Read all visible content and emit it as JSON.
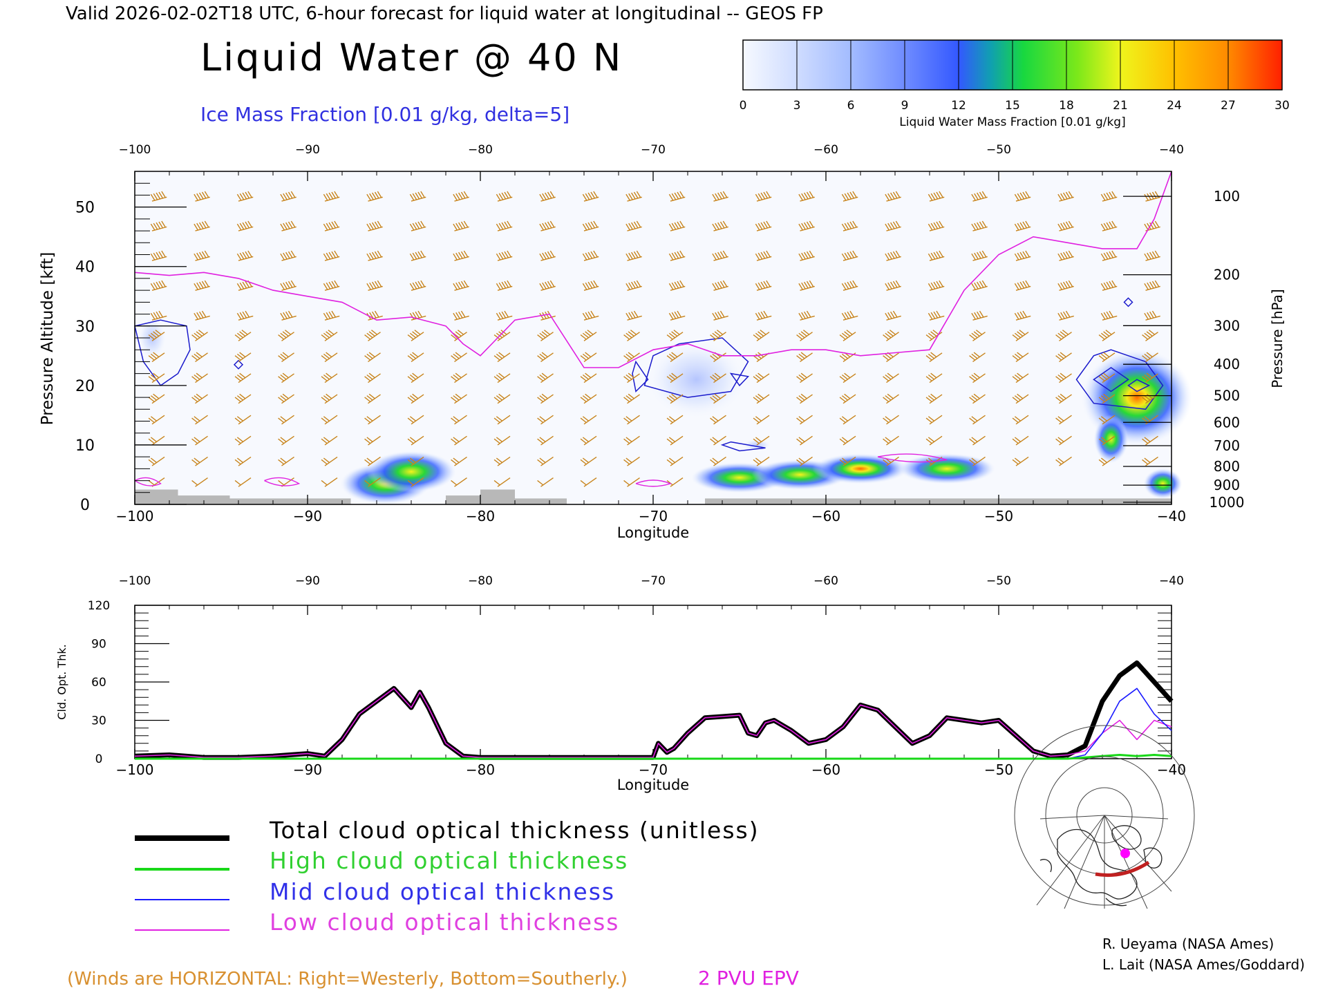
{
  "header": {
    "valid_line": "Valid 2026-02-02T18 UTC, 6-hour forecast for liquid water at longitudinal -- GEOS FP",
    "title": "Liquid Water @ 40 N",
    "ice_label": "Ice Mass Fraction [0.01 g/kg, delta=5]"
  },
  "colorbar": {
    "ticks": [
      "0",
      "3",
      "6",
      "9",
      "12",
      "15",
      "18",
      "21",
      "24",
      "27",
      "30"
    ],
    "label": "Liquid Water Mass Fraction [0.01 g/kg]",
    "colors": [
      "#f4f8ff",
      "#c8d8ff",
      "#9ab6ff",
      "#6d8cff",
      "#3358ff",
      "#12a4a0",
      "#1ed83a",
      "#9be81a",
      "#f7f21c",
      "#ffb000",
      "#ff6a00",
      "#ff1a00"
    ]
  },
  "top_chart": {
    "xlabel": "Longitude",
    "ylabel": "Pressure Altitude [kft]",
    "y2label": "Pressure [hPa]",
    "x_ticks": [
      "-100",
      "-90",
      "-80",
      "-70",
      "-60",
      "-50",
      "-40"
    ],
    "y_ticks": [
      "0",
      "10",
      "20",
      "30",
      "40",
      "50"
    ],
    "p_ticks": [
      "100",
      "200",
      "300",
      "400",
      "500",
      "600",
      "700",
      "800",
      "900",
      "1000"
    ]
  },
  "chart_data": [
    {
      "type": "heatmap",
      "title": "Liquid Water @ 40 N",
      "xlabel": "Longitude",
      "ylabel": "Pressure Altitude [kft]",
      "xlim": [
        -100,
        -40
      ],
      "ylim": [
        0,
        56
      ],
      "liquid_water_blobs": [
        {
          "lon": -85.5,
          "alt": 3.5,
          "max": 17
        },
        {
          "lon": -84,
          "alt": 5.5,
          "max": 15
        },
        {
          "lon": -65,
          "alt": 4.5,
          "max": 18
        },
        {
          "lon": -61.5,
          "alt": 5,
          "max": 19
        },
        {
          "lon": -58,
          "alt": 6,
          "max": 22
        },
        {
          "lon": -53,
          "alt": 6,
          "max": 20
        },
        {
          "lon": -42,
          "alt": 18,
          "max": 26
        },
        {
          "lon": -43.5,
          "alt": 11,
          "max": 20
        },
        {
          "lon": -40.5,
          "alt": 3.5,
          "max": 18
        }
      ],
      "tropopause_2pvu_epv": {
        "lon": [
          -100,
          -98,
          -96,
          -94,
          -92,
          -90,
          -88,
          -86,
          -84,
          -82,
          -81,
          -80,
          -78,
          -76,
          -74,
          -72,
          -70,
          -68,
          -66,
          -64,
          -62,
          -60,
          -58,
          -56,
          -54,
          -52,
          -50,
          -48,
          -46,
          -44,
          -42,
          -41,
          -40
        ],
        "alt": [
          39,
          38.5,
          39,
          38,
          36,
          35,
          34,
          31,
          31.5,
          30,
          27,
          25,
          31,
          32,
          23,
          23,
          26,
          27,
          25,
          25,
          26,
          26,
          25,
          25.5,
          26,
          36,
          42,
          45,
          44,
          43,
          43,
          48,
          56
        ]
      }
    },
    {
      "type": "line",
      "xlabel": "Longitude",
      "ylabel": "Cld. Opt. Thk.",
      "xlim": [
        -100,
        -40
      ],
      "ylim": [
        0,
        120
      ],
      "x_ticks": [
        "-100",
        "-90",
        "-80",
        "-70",
        "-60",
        "-50",
        "-40"
      ],
      "y_ticks": [
        "0",
        "30",
        "60",
        "90",
        "120"
      ],
      "x": [
        -100,
        -98,
        -96,
        -94,
        -92,
        -90,
        -89,
        -88,
        -87,
        -86,
        -85,
        -84,
        -83.5,
        -83,
        -82,
        -81,
        -80,
        -78,
        -76,
        -74,
        -72,
        -70,
        -69.7,
        -69.2,
        -68.8,
        -68,
        -67,
        -66,
        -65,
        -64.5,
        -64,
        -63.5,
        -63,
        -62,
        -61,
        -60,
        -59,
        -58,
        -57,
        -56,
        -55,
        -54,
        -53,
        -52,
        -51,
        -50,
        -49,
        -48,
        -47,
        -46,
        -45,
        -44,
        -43,
        -42,
        -41,
        -40
      ],
      "series": [
        {
          "name": "Total cloud optical thickness (unitless)",
          "color": "#000000",
          "values": [
            2,
            3,
            1,
            1,
            2,
            4,
            2,
            15,
            35,
            45,
            55,
            40,
            52,
            40,
            12,
            2,
            1,
            1,
            1,
            1,
            1,
            1,
            12,
            5,
            8,
            20,
            32,
            33,
            34,
            20,
            18,
            28,
            30,
            22,
            12,
            15,
            25,
            42,
            38,
            25,
            12,
            18,
            32,
            30,
            28,
            30,
            18,
            6,
            2,
            3,
            10,
            45,
            65,
            75,
            60,
            45
          ]
        },
        {
          "name": "High cloud optical thickness",
          "color": "#18d818",
          "values": [
            0,
            0,
            0,
            0,
            0,
            0,
            0,
            0,
            0,
            0,
            0,
            0,
            0,
            0,
            0,
            0,
            0,
            0,
            0,
            0,
            0,
            0,
            0,
            0,
            0,
            0,
            0,
            0,
            0,
            0,
            0,
            0,
            0,
            0,
            0,
            0,
            0,
            0,
            0,
            0,
            0,
            0,
            0,
            0,
            0,
            0,
            0,
            0,
            0,
            0,
            1,
            2,
            3,
            2,
            3,
            2
          ]
        },
        {
          "name": "Mid cloud optical thickness",
          "color": "#1a1aff",
          "values": [
            0,
            0,
            0,
            0,
            0,
            0,
            0,
            0,
            0,
            0,
            0,
            0,
            0,
            0,
            0,
            0,
            0,
            0,
            0,
            0,
            0,
            0,
            0,
            0,
            0,
            0,
            0,
            0,
            0,
            0,
            0,
            0,
            0,
            0,
            0,
            0,
            0,
            0,
            0,
            0,
            0,
            0,
            0,
            0,
            0,
            0,
            0,
            0,
            0,
            0,
            3,
            20,
            45,
            55,
            35,
            22
          ]
        },
        {
          "name": "Low cloud optical thickness",
          "color": "#e020e0",
          "values": [
            2,
            3,
            1,
            1,
            2,
            4,
            2,
            15,
            35,
            45,
            55,
            40,
            52,
            40,
            12,
            2,
            1,
            1,
            1,
            1,
            1,
            1,
            12,
            5,
            8,
            20,
            32,
            33,
            34,
            20,
            18,
            28,
            30,
            22,
            12,
            15,
            25,
            42,
            38,
            25,
            12,
            18,
            32,
            30,
            28,
            30,
            18,
            6,
            2,
            3,
            6,
            20,
            30,
            15,
            30,
            25
          ]
        }
      ]
    }
  ],
  "legend": {
    "total": "Total cloud optical thickness (unitless)",
    "high": "High cloud optical thickness",
    "mid": "Mid cloud optical thickness",
    "low": "Low cloud optical thickness"
  },
  "footer": {
    "winds_note": "(Winds are HORIZONTAL: Right=Westerly, Bottom=Southerly.)",
    "epv_note": "2 PVU EPV",
    "credit1": "R. Ueyama (NASA Ames)",
    "credit2": "L. Lait (NASA Ames/Goddard)"
  }
}
